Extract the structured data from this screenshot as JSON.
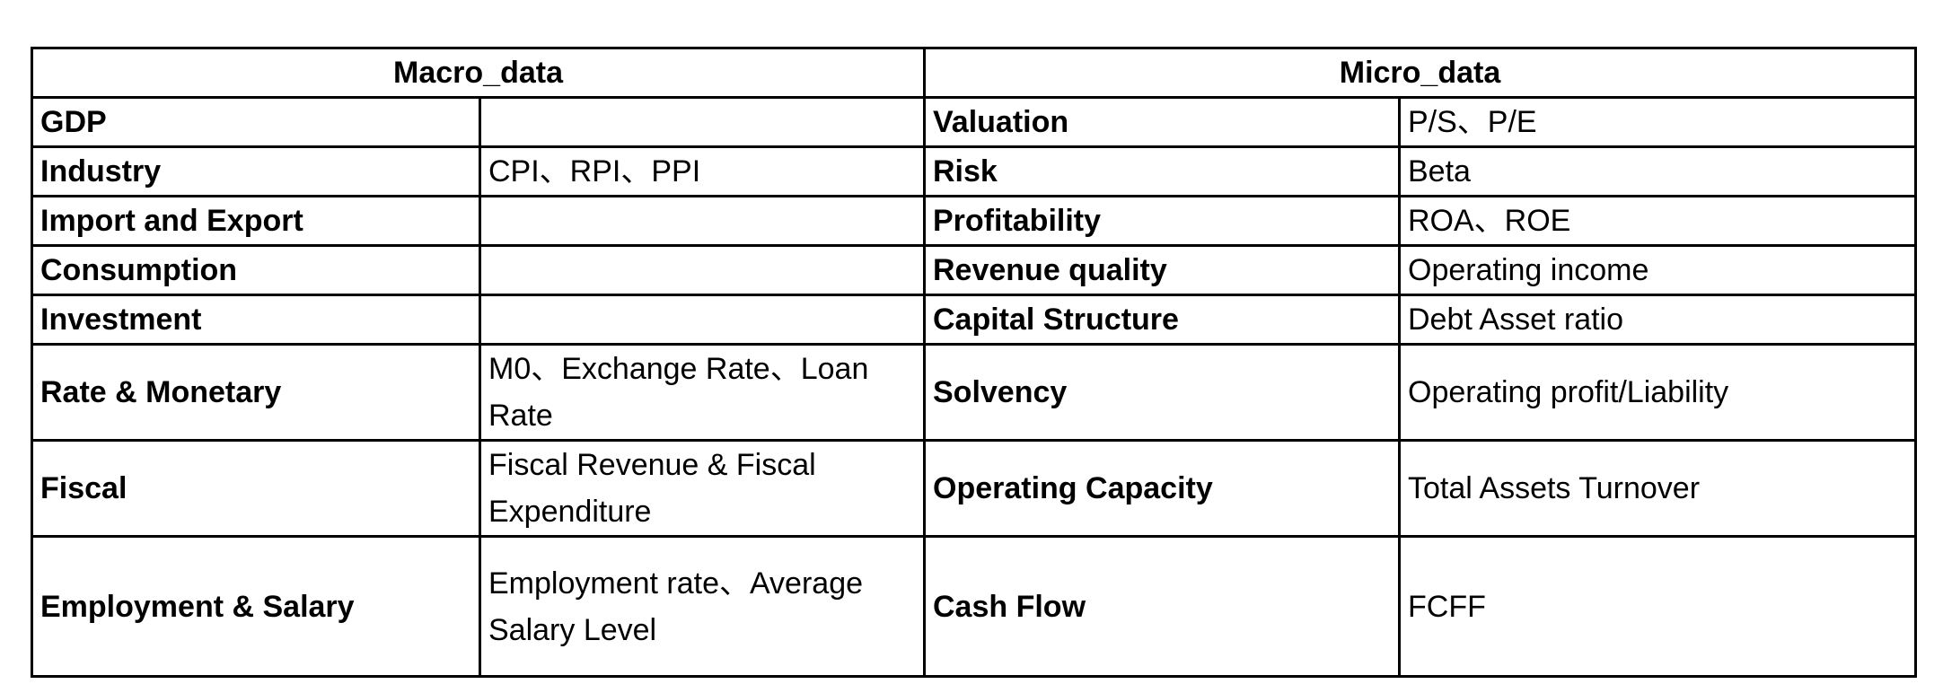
{
  "headers": {
    "macro": "Macro_data",
    "micro": "Micro_data"
  },
  "rows": [
    {
      "macro_label": "GDP",
      "macro_value": "",
      "micro_label": "Valuation",
      "micro_value": "P/S、P/E"
    },
    {
      "macro_label": "Industry",
      "macro_value": "CPI、RPI、PPI",
      "micro_label": "Risk",
      "micro_value": "Beta"
    },
    {
      "macro_label": "Import and Export",
      "macro_value": "",
      "micro_label": "Profitability",
      "micro_value": "ROA、ROE"
    },
    {
      "macro_label": "Consumption",
      "macro_value": "",
      "micro_label": "Revenue quality",
      "micro_value": "Operating income"
    },
    {
      "macro_label": "Investment",
      "macro_value": "",
      "micro_label": "Capital Structure",
      "micro_value": "Debt Asset ratio"
    },
    {
      "macro_label": "Rate & Monetary",
      "macro_value": "M0、Exchange Rate、Loan Rate",
      "micro_label": "Solvency",
      "micro_value": "Operating profit/Liability"
    },
    {
      "macro_label": "Fiscal",
      "macro_value": "Fiscal Revenue & Fiscal Expenditure",
      "micro_label": "Operating Capacity",
      "micro_value": "Total Assets Turnover"
    },
    {
      "macro_label": "Employment & Salary",
      "macro_value": "Employment rate、Average Salary Level",
      "micro_label": "Cash Flow",
      "micro_value": "FCFF"
    }
  ]
}
